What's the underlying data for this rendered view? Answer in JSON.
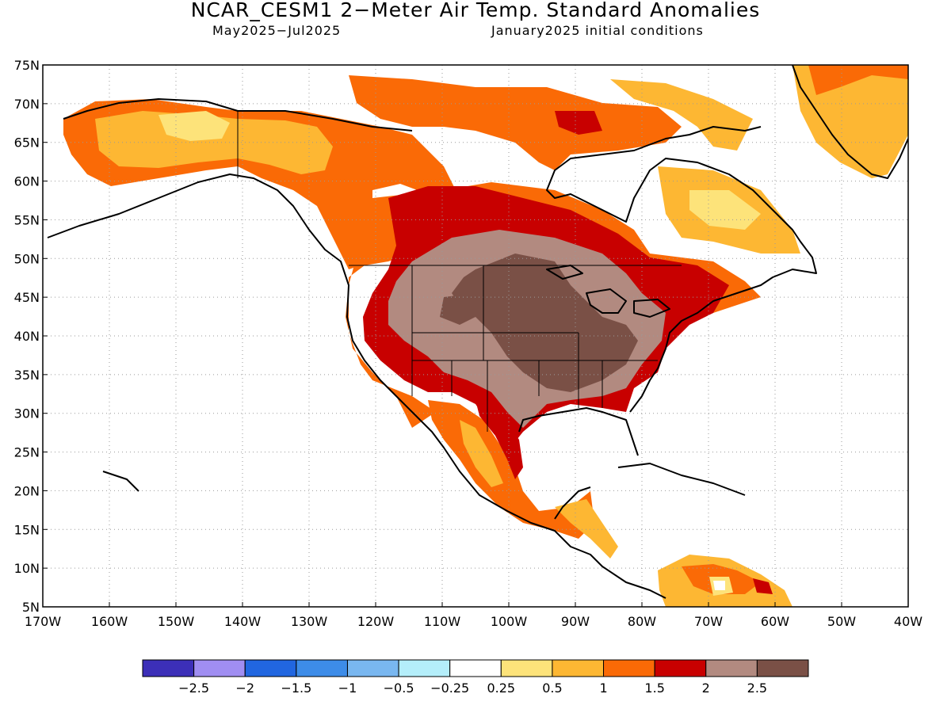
{
  "title": "NCAR_CESM1 2−Meter Air Temp. Standard Anomalies",
  "subtitle_left": "May2025−Jul2025",
  "subtitle_right": "January2025 initial conditions",
  "map": {
    "lon_range": [
      -170,
      -40
    ],
    "lat_range": [
      5,
      75
    ],
    "lat_ticks": [
      "75N",
      "70N",
      "65N",
      "60N",
      "55N",
      "50N",
      "45N",
      "40N",
      "35N",
      "30N",
      "25N",
      "20N",
      "15N",
      "10N",
      "5N"
    ],
    "lon_ticks": [
      "170W",
      "160W",
      "150W",
      "140W",
      "130W",
      "120W",
      "110W",
      "100W",
      "90W",
      "80W",
      "70W",
      "60W",
      "50W",
      "40W"
    ],
    "gridlines": true
  },
  "colorbar": {
    "colors": [
      "#3c2fb8",
      "#a08ef2",
      "#2166e0",
      "#3d8ce8",
      "#79b7f0",
      "#b4eefa",
      "#ffffff",
      "#fde37a",
      "#fdb733",
      "#fa6a06",
      "#c80000",
      "#b28a80",
      "#7a5046"
    ],
    "labels": [
      "−2.5",
      "−2",
      "−1.5",
      "−1",
      "−0.5",
      "−0.25",
      "0.25",
      "0.5",
      "1",
      "1.5",
      "2",
      "2.5"
    ]
  }
}
